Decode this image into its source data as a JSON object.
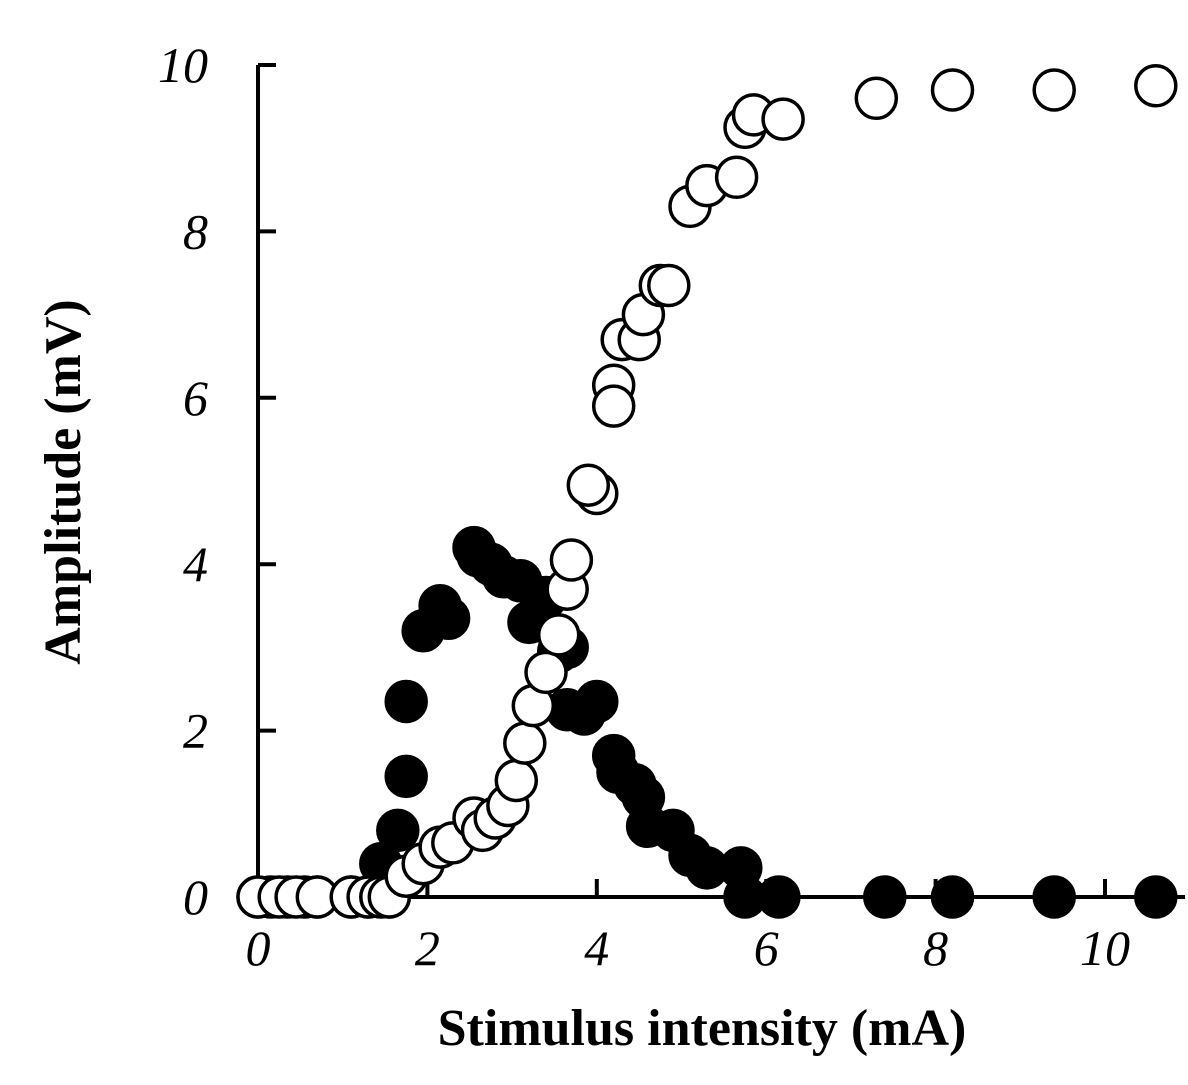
{
  "chart_data": {
    "type": "scatter",
    "title": "",
    "xlabel": "Stimulus intensity (mA)",
    "ylabel": "Amplitude (mV)",
    "xlim": [
      0,
      11
    ],
    "ylim": [
      0,
      10
    ],
    "xticks": [
      0,
      2,
      4,
      6,
      8,
      10
    ],
    "yticks": [
      0,
      2,
      4,
      6,
      8,
      10
    ],
    "xtick_labels": [
      "0",
      "2",
      "4",
      "6",
      "8",
      "10"
    ],
    "ytick_labels": [
      "0",
      "2",
      "4",
      "6",
      "8",
      "10"
    ],
    "grid": false,
    "legend": "none",
    "series": [
      {
        "marker": "filled-circle",
        "color": "#000000",
        "points": [
          [
            0.0,
            0.0
          ],
          [
            0.15,
            0.0
          ],
          [
            0.35,
            0.0
          ],
          [
            0.55,
            0.0
          ],
          [
            0.7,
            0.0
          ],
          [
            1.1,
            0.0
          ],
          [
            1.3,
            0.0
          ],
          [
            1.45,
            0.4
          ],
          [
            1.55,
            0.0
          ],
          [
            1.65,
            0.8
          ],
          [
            1.75,
            1.45
          ],
          [
            1.75,
            2.35
          ],
          [
            1.95,
            3.2
          ],
          [
            2.15,
            3.5
          ],
          [
            2.25,
            3.35
          ],
          [
            2.55,
            4.2
          ],
          [
            2.6,
            4.1
          ],
          [
            2.75,
            4.0
          ],
          [
            2.9,
            3.85
          ],
          [
            3.1,
            3.8
          ],
          [
            3.2,
            3.3
          ],
          [
            3.4,
            3.6
          ],
          [
            3.55,
            2.95
          ],
          [
            3.65,
            3.0
          ],
          [
            3.65,
            2.25
          ],
          [
            3.85,
            2.2
          ],
          [
            4.0,
            2.35
          ],
          [
            4.2,
            1.7
          ],
          [
            4.25,
            1.5
          ],
          [
            4.45,
            1.35
          ],
          [
            4.55,
            1.2
          ],
          [
            4.6,
            0.85
          ],
          [
            4.9,
            0.8
          ],
          [
            5.1,
            0.5
          ],
          [
            5.3,
            0.35
          ],
          [
            5.7,
            0.35
          ],
          [
            5.75,
            0.0
          ],
          [
            6.15,
            0.0
          ],
          [
            7.4,
            0.0
          ],
          [
            8.2,
            0.0
          ],
          [
            9.4,
            0.0
          ],
          [
            10.6,
            0.0
          ]
        ]
      },
      {
        "marker": "open-circle",
        "color": "#000000",
        "points": [
          [
            0.0,
            0.0
          ],
          [
            0.25,
            0.0
          ],
          [
            0.45,
            0.0
          ],
          [
            0.7,
            0.0
          ],
          [
            1.1,
            0.0
          ],
          [
            1.3,
            0.0
          ],
          [
            1.45,
            0.0
          ],
          [
            1.55,
            0.0
          ],
          [
            1.75,
            0.25
          ],
          [
            1.95,
            0.4
          ],
          [
            2.15,
            0.6
          ],
          [
            2.3,
            0.65
          ],
          [
            2.55,
            0.95
          ],
          [
            2.65,
            0.8
          ],
          [
            2.8,
            0.95
          ],
          [
            2.95,
            1.1
          ],
          [
            3.05,
            1.4
          ],
          [
            3.15,
            1.85
          ],
          [
            3.25,
            2.3
          ],
          [
            3.4,
            2.7
          ],
          [
            3.55,
            3.15
          ],
          [
            3.65,
            3.7
          ],
          [
            3.7,
            4.05
          ],
          [
            4.0,
            4.85
          ],
          [
            3.9,
            4.95
          ],
          [
            4.2,
            6.15
          ],
          [
            4.2,
            5.9
          ],
          [
            4.3,
            6.7
          ],
          [
            4.5,
            6.7
          ],
          [
            4.55,
            7.0
          ],
          [
            4.75,
            7.35
          ],
          [
            4.85,
            7.35
          ],
          [
            5.1,
            8.3
          ],
          [
            5.3,
            8.55
          ],
          [
            5.65,
            8.65
          ],
          [
            5.75,
            9.25
          ],
          [
            5.85,
            9.4
          ],
          [
            6.2,
            9.35
          ],
          [
            7.3,
            9.6
          ],
          [
            8.2,
            9.7
          ],
          [
            9.4,
            9.7
          ],
          [
            10.6,
            9.75
          ]
        ]
      }
    ]
  }
}
